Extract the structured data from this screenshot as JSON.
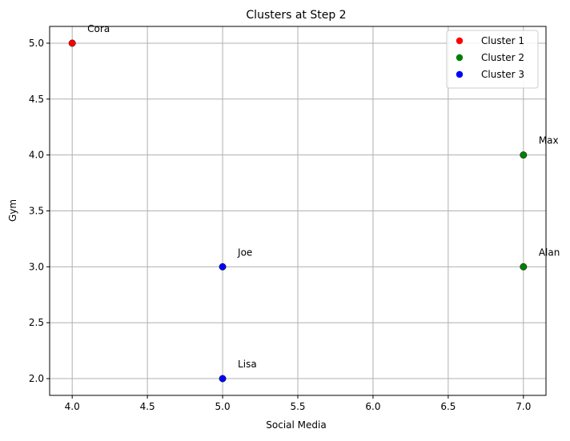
{
  "chart_data": {
    "type": "scatter",
    "title": "Clusters at Step 2",
    "xlabel": "Social Media",
    "ylabel": "Gym",
    "xlim": [
      3.85,
      7.15
    ],
    "ylim": [
      1.85,
      5.15
    ],
    "xticks": [
      "4.0",
      "4.5",
      "5.0",
      "5.5",
      "6.0",
      "6.5",
      "7.0"
    ],
    "yticks": [
      "2.0",
      "2.5",
      "3.0",
      "3.5",
      "4.0",
      "4.5",
      "5.0"
    ],
    "grid": true,
    "legend_position": "top-right",
    "series": [
      {
        "name": "Cluster 1",
        "color": "#ff0000",
        "points": [
          {
            "x": 4.0,
            "y": 5.0,
            "label": "Cora"
          }
        ]
      },
      {
        "name": "Cluster 2",
        "color": "#008000",
        "points": [
          {
            "x": 7.0,
            "y": 4.0,
            "label": "Max"
          },
          {
            "x": 7.0,
            "y": 3.0,
            "label": "Alan"
          }
        ]
      },
      {
        "name": "Cluster 3",
        "color": "#0000ff",
        "points": [
          {
            "x": 5.0,
            "y": 3.0,
            "label": "Joe"
          },
          {
            "x": 5.0,
            "y": 2.0,
            "label": "Lisa"
          }
        ]
      }
    ]
  }
}
